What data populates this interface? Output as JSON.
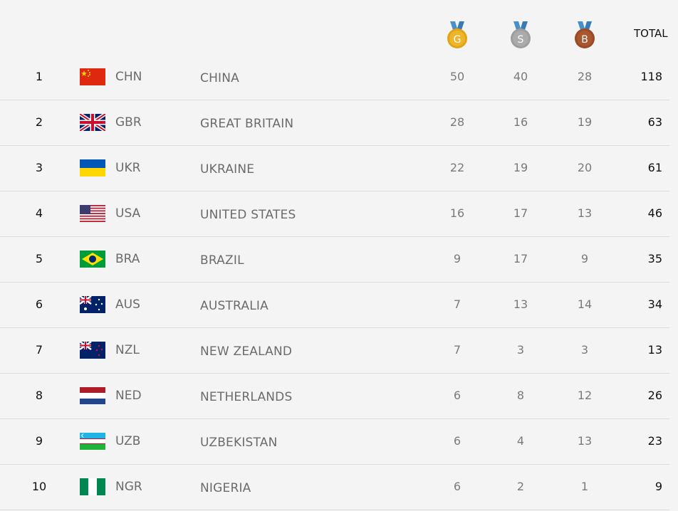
{
  "header": {
    "gold_letter": "G",
    "silver_letter": "S",
    "bronze_letter": "B",
    "total_label": "TOTAL"
  },
  "colors": {
    "gold": "#e2a417",
    "silver": "#9e9e9e",
    "bronze": "#a0522d",
    "ribbon": "#4a90c8"
  },
  "rows": [
    {
      "rank": "1",
      "code": "CHN",
      "name": "CHINA",
      "gold": "50",
      "silver": "40",
      "bronze": "28",
      "total": "118",
      "flag": "china-flag-icon"
    },
    {
      "rank": "2",
      "code": "GBR",
      "name": "GREAT BRITAIN",
      "gold": "28",
      "silver": "16",
      "bronze": "19",
      "total": "63",
      "flag": "great-britain-flag-icon"
    },
    {
      "rank": "3",
      "code": "UKR",
      "name": "UKRAINE",
      "gold": "22",
      "silver": "19",
      "bronze": "20",
      "total": "61",
      "flag": "ukraine-flag-icon"
    },
    {
      "rank": "4",
      "code": "USA",
      "name": "UNITED STATES",
      "gold": "16",
      "silver": "17",
      "bronze": "13",
      "total": "46",
      "flag": "united-states-flag-icon"
    },
    {
      "rank": "5",
      "code": "BRA",
      "name": "BRAZIL",
      "gold": "9",
      "silver": "17",
      "bronze": "9",
      "total": "35",
      "flag": "brazil-flag-icon"
    },
    {
      "rank": "6",
      "code": "AUS",
      "name": "AUSTRALIA",
      "gold": "7",
      "silver": "13",
      "bronze": "14",
      "total": "34",
      "flag": "australia-flag-icon"
    },
    {
      "rank": "7",
      "code": "NZL",
      "name": "NEW ZEALAND",
      "gold": "7",
      "silver": "3",
      "bronze": "3",
      "total": "13",
      "flag": "new-zealand-flag-icon"
    },
    {
      "rank": "8",
      "code": "NED",
      "name": "NETHERLANDS",
      "gold": "6",
      "silver": "8",
      "bronze": "12",
      "total": "26",
      "flag": "netherlands-flag-icon"
    },
    {
      "rank": "9",
      "code": "UZB",
      "name": "UZBEKISTAN",
      "gold": "6",
      "silver": "4",
      "bronze": "13",
      "total": "23",
      "flag": "uzbekistan-flag-icon"
    },
    {
      "rank": "10",
      "code": "NGR",
      "name": "NIGERIA",
      "gold": "6",
      "silver": "2",
      "bronze": "1",
      "total": "9",
      "flag": "nigeria-flag-icon"
    }
  ]
}
